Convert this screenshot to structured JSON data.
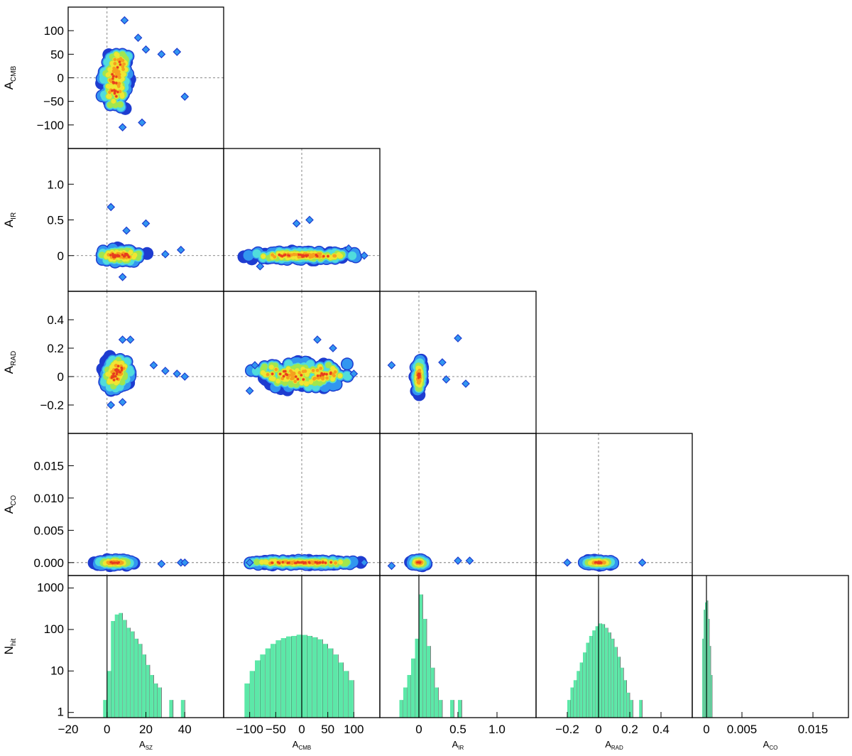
{
  "chart_data": {
    "type": "corner-plot",
    "parameters": [
      "A_SZ",
      "A_CMB",
      "A_IR",
      "A_RAD",
      "A_CO"
    ],
    "labels": {
      "A_SZ": {
        "main": "A",
        "sub": "SZ"
      },
      "A_CMB": {
        "main": "A",
        "sub": "CMB"
      },
      "A_IR": {
        "main": "A",
        "sub": "IR"
      },
      "A_RAD": {
        "main": "A",
        "sub": "RAD"
      },
      "A_CO": {
        "main": "A",
        "sub": "CO"
      },
      "N_hit": {
        "main": "N",
        "sub": "hit"
      }
    },
    "ranges": {
      "A_SZ": [
        -20,
        60
      ],
      "A_CMB": [
        -150,
        150
      ],
      "A_IR": [
        -0.5,
        1.5
      ],
      "A_RAD": [
        -0.4,
        0.6
      ],
      "A_CO": [
        -0.002,
        0.02
      ]
    },
    "ticks": {
      "A_SZ": {
        "values": [
          -20,
          0,
          20,
          40
        ],
        "labels": [
          "−20",
          "0",
          "20",
          "40"
        ]
      },
      "A_CMB_y": {
        "values": [
          100,
          50,
          0,
          -50,
          -100
        ],
        "labels": [
          "100",
          "50",
          "0",
          "−50",
          "−100"
        ]
      },
      "A_CMB_x": {
        "values": [
          -100,
          -50,
          0,
          50,
          100
        ],
        "labels": [
          "−100",
          "−50",
          "0",
          "50",
          "100"
        ]
      },
      "A_IR_y": {
        "values": [
          1.0,
          0.5,
          0
        ],
        "labels": [
          "1.0",
          "0.5",
          "0"
        ]
      },
      "A_IR_x": {
        "values": [
          0,
          0.5,
          1.0
        ],
        "labels": [
          "0",
          "0.5",
          "1.0"
        ]
      },
      "A_RAD_y": {
        "values": [
          0.4,
          0.2,
          0,
          -0.2
        ],
        "labels": [
          "0.4",
          "0.2",
          "0",
          "−0.2"
        ]
      },
      "A_RAD_x": {
        "values": [
          -0.2,
          0,
          0.2,
          0.4
        ],
        "labels": [
          "−0.2",
          "0",
          "0.2",
          "0.4"
        ]
      },
      "A_CO_y": {
        "values": [
          0.015,
          0.01,
          0.005,
          0.0
        ],
        "labels": [
          "0.015",
          "0.010",
          "0.005",
          "0.000"
        ]
      },
      "A_CO_x": {
        "values": [
          0,
          0.005,
          0.015
        ],
        "labels": [
          "0",
          "0.005",
          "0.015"
        ]
      },
      "N_hit": {
        "values": [
          1000,
          100,
          10,
          1
        ],
        "labels": [
          "1000",
          "100",
          "10",
          "1"
        ]
      }
    },
    "hist_yscale": "log",
    "hist_ylim": [
      0.75,
      2000
    ],
    "fiducial": {
      "A_SZ": 0,
      "A_CMB": 0,
      "A_IR": 0,
      "A_RAD": 0,
      "A_CO": 0
    },
    "hist_color": "#5ce8a8",
    "contour_colors": [
      "#1e3cd0",
      "#3296f0",
      "#50dcdc",
      "#a0e650",
      "#f0e632",
      "#f5a01e",
      "#e63c1e"
    ],
    "histograms": {
      "A_SZ": {
        "bins": [
          -2,
          0,
          2,
          4,
          6,
          8,
          10,
          12,
          14,
          16,
          18,
          20,
          22,
          24,
          26,
          28,
          30,
          32,
          34,
          36,
          38,
          40
        ],
        "counts": [
          2,
          10,
          160,
          230,
          250,
          170,
          110,
          90,
          60,
          45,
          25,
          14,
          8,
          5,
          4,
          0,
          0,
          2,
          0,
          0,
          2
        ]
      },
      "A_CMB": {
        "bins": [
          -110,
          -100,
          -90,
          -80,
          -70,
          -60,
          -50,
          -40,
          -30,
          -20,
          -10,
          0,
          10,
          20,
          30,
          40,
          50,
          60,
          70,
          80,
          90,
          100
        ],
        "counts": [
          5,
          10,
          18,
          25,
          35,
          45,
          55,
          62,
          68,
          70,
          75,
          74,
          70,
          65,
          58,
          45,
          35,
          25,
          16,
          10,
          6
        ]
      },
      "A_IR": {
        "bins": [
          -0.25,
          -0.2,
          -0.15,
          -0.1,
          -0.05,
          0.0,
          0.05,
          0.1,
          0.15,
          0.2,
          0.25,
          0.3,
          0.35,
          0.4,
          0.45,
          0.5,
          0.55
        ],
        "counts": [
          2,
          4,
          8,
          20,
          60,
          700,
          180,
          40,
          12,
          4,
          2,
          0,
          0,
          2,
          0,
          2
        ]
      },
      "A_RAD": {
        "bins": [
          -0.24,
          -0.22,
          -0.2,
          -0.18,
          -0.16,
          -0.14,
          -0.12,
          -0.1,
          -0.08,
          -0.06,
          -0.04,
          -0.02,
          0.0,
          0.02,
          0.04,
          0.06,
          0.08,
          0.1,
          0.12,
          0.14,
          0.16,
          0.18,
          0.2,
          0.22,
          0.24,
          0.26,
          0.28
        ],
        "counts": [
          0,
          0,
          2,
          4,
          6,
          10,
          16,
          28,
          48,
          70,
          95,
          120,
          140,
          135,
          110,
          85,
          60,
          38,
          22,
          12,
          6,
          3,
          2,
          0,
          0,
          2
        ]
      },
      "A_CO": {
        "bins": [
          -0.0006,
          -0.0004,
          -0.0002,
          0.0,
          0.0002,
          0.0004,
          0.0006,
          0.0008
        ],
        "counts": [
          60,
          300,
          450,
          500,
          180,
          40,
          8
        ]
      }
    },
    "scatter_panels": [
      {
        "x": "A_SZ",
        "y": "A_CMB",
        "core": [
          [
            4,
            0
          ],
          [
            6,
            25
          ],
          [
            4,
            -30
          ]
        ],
        "spread": [
          6,
          40
        ],
        "outliers": [
          [
            9,
            122
          ],
          [
            16,
            85
          ],
          [
            20,
            60
          ],
          [
            28,
            50
          ],
          [
            36,
            55
          ],
          [
            40,
            -40
          ],
          [
            8,
            -105
          ],
          [
            18,
            -95
          ]
        ]
      },
      {
        "x": "A_SZ",
        "y": "A_IR",
        "core": [
          [
            4,
            0
          ],
          [
            10,
            0
          ]
        ],
        "spread": [
          8,
          0.08
        ],
        "outliers": [
          [
            2,
            0.68
          ],
          [
            10,
            0.35
          ],
          [
            20,
            0.45
          ],
          [
            38,
            0.08
          ],
          [
            8,
            -0.3
          ],
          [
            30,
            0.02
          ]
        ]
      },
      {
        "x": "A_CMB",
        "y": "A_IR",
        "core": [
          [
            0,
            0
          ],
          [
            -40,
            0
          ],
          [
            40,
            0
          ]
        ],
        "spread": [
          60,
          0.05
        ],
        "outliers": [
          [
            -10,
            0.45
          ],
          [
            15,
            0.5
          ],
          [
            90,
            0.1
          ],
          [
            -80,
            -0.15
          ],
          [
            120,
            0.0
          ]
        ]
      },
      {
        "x": "A_SZ",
        "y": "A_RAD",
        "core": [
          [
            4,
            0
          ],
          [
            6,
            0.05
          ]
        ],
        "spread": [
          6,
          0.08
        ],
        "outliers": [
          [
            8,
            0.26
          ],
          [
            12,
            0.26
          ],
          [
            24,
            0.08
          ],
          [
            30,
            0.04
          ],
          [
            36,
            0.02
          ],
          [
            40,
            0.0
          ],
          [
            2,
            -0.2
          ],
          [
            8,
            -0.18
          ]
        ]
      },
      {
        "x": "A_CMB",
        "y": "A_RAD",
        "core": [
          [
            0,
            0
          ],
          [
            -40,
            0.02
          ],
          [
            40,
            0.02
          ]
        ],
        "spread": [
          55,
          0.08
        ],
        "outliers": [
          [
            -100,
            -0.1
          ],
          [
            30,
            0.26
          ],
          [
            100,
            0.02
          ],
          [
            -90,
            0.08
          ],
          [
            60,
            0.2
          ]
        ]
      },
      {
        "x": "A_IR",
        "y": "A_RAD",
        "core": [
          [
            0,
            0
          ]
        ],
        "spread": [
          0.04,
          0.1
        ],
        "outliers": [
          [
            0.5,
            0.27
          ],
          [
            0.3,
            0.1
          ],
          [
            0.6,
            -0.05
          ],
          [
            -0.35,
            0.08
          ],
          [
            0.35,
            -0.02
          ]
        ]
      },
      {
        "x": "A_SZ",
        "y": "A_CO",
        "core": [
          [
            4,
            0.0
          ]
        ],
        "spread": [
          8,
          0.0004
        ],
        "outliers": [
          [
            28,
            -0.0002
          ],
          [
            38,
            0.0
          ],
          [
            40,
            0.0
          ]
        ]
      },
      {
        "x": "A_CMB",
        "y": "A_CO",
        "core": [
          [
            0,
            0.0
          ],
          [
            -40,
            0.0
          ],
          [
            40,
            0.0
          ]
        ],
        "spread": [
          60,
          0.0003
        ],
        "outliers": [
          [
            120,
            0.0
          ],
          [
            -100,
            0.0
          ]
        ]
      },
      {
        "x": "A_IR",
        "y": "A_CO",
        "core": [
          [
            0,
            0.0
          ]
        ],
        "spread": [
          0.08,
          0.0004
        ],
        "outliers": [
          [
            0.5,
            0.0003
          ],
          [
            0.65,
            0.0003
          ],
          [
            -0.35,
            -0.0005
          ]
        ]
      },
      {
        "x": "A_RAD",
        "y": "A_CO",
        "core": [
          [
            0,
            0.0
          ]
        ],
        "spread": [
          0.08,
          0.0003
        ],
        "outliers": [
          [
            0.28,
            0.0
          ],
          [
            -0.2,
            0.0
          ]
        ]
      }
    ]
  }
}
